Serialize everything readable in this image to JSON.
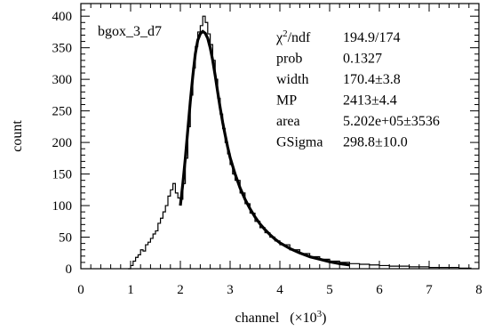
{
  "chart_data": {
    "type": "line",
    "hist_title": "bgox_3_d7",
    "xlabel": "channel",
    "xlabel_unit_prefix": "(×10",
    "xlabel_unit_exp": "3",
    "xlabel_unit_suffix": ")",
    "ylabel": "count",
    "xlim": [
      0,
      8
    ],
    "ylim": [
      0,
      420
    ],
    "x_ticks": [
      "0",
      "1",
      "2",
      "3",
      "4",
      "5",
      "6",
      "7",
      "8"
    ],
    "y_ticks": [
      "0",
      "50",
      "100",
      "150",
      "200",
      "250",
      "300",
      "350",
      "400"
    ],
    "stats": [
      {
        "label_prefix": "χ",
        "label_exp": "2",
        "label_suffix": "/ndf",
        "value": "194.9/174"
      },
      {
        "label_prefix": "prob",
        "label_exp": "",
        "label_suffix": "",
        "value": "0.1327"
      },
      {
        "label_prefix": "width",
        "label_exp": "",
        "label_suffix": "",
        "value": "170.4±3.8"
      },
      {
        "label_prefix": "MP",
        "label_exp": "",
        "label_suffix": "",
        "value": "2413±4.4"
      },
      {
        "label_prefix": "area",
        "label_exp": "",
        "label_suffix": "",
        "value": "5.202e+05±3536"
      },
      {
        "label_prefix": "GSigma",
        "label_exp": "",
        "label_suffix": "",
        "value": "298.8±10.0"
      }
    ],
    "series": [
      {
        "x": [
          0.95,
          1.0,
          1.05,
          1.1,
          1.15,
          1.2,
          1.25,
          1.3,
          1.35,
          1.4,
          1.45,
          1.5,
          1.55,
          1.6,
          1.65,
          1.7,
          1.75,
          1.8,
          1.85,
          1.9,
          1.95,
          2.0,
          2.05,
          2.1,
          2.15,
          2.2,
          2.25,
          2.3,
          2.35,
          2.4,
          2.45,
          2.5,
          2.55,
          2.6,
          2.65,
          2.7,
          2.75,
          2.8,
          2.85,
          2.9,
          2.95,
          3.0,
          3.05,
          3.1,
          3.2,
          3.3,
          3.4,
          3.5,
          3.6,
          3.7,
          3.8,
          3.9,
          4.0,
          4.2,
          4.4,
          4.6,
          4.8,
          5.0,
          5.2,
          5.4,
          5.6,
          5.8,
          6.0,
          6.2,
          6.4,
          6.6,
          6.8,
          7.0,
          7.2,
          7.4,
          7.6,
          7.8
        ],
        "y": [
          0,
          5,
          12,
          18,
          22,
          30,
          28,
          38,
          42,
          48,
          55,
          60,
          72,
          80,
          90,
          100,
          115,
          125,
          135,
          120,
          112,
          110,
          135,
          175,
          225,
          275,
          318,
          352,
          375,
          385,
          400,
          390,
          372,
          355,
          330,
          300,
          270,
          245,
          222,
          200,
          182,
          165,
          150,
          140,
          120,
          103,
          88,
          75,
          65,
          57,
          50,
          44,
          38,
          30,
          24,
          19,
          15,
          12,
          10,
          8,
          7,
          6,
          5,
          4,
          4,
          3,
          3,
          2,
          2,
          2,
          1,
          1
        ]
      },
      {
        "x": [
          2.0,
          2.05,
          2.1,
          2.15,
          2.2,
          2.25,
          2.3,
          2.35,
          2.4,
          2.45,
          2.5,
          2.55,
          2.6,
          2.65,
          2.7,
          2.75,
          2.8,
          2.85,
          2.9,
          2.95,
          3.0,
          3.1,
          3.2,
          3.3,
          3.4,
          3.5,
          3.6,
          3.7,
          3.8,
          3.9,
          4.0,
          4.2,
          4.4,
          4.6,
          4.8,
          5.0,
          5.2,
          5.4
        ],
        "y": [
          100,
          135,
          175,
          220,
          265,
          305,
          340,
          362,
          372,
          376,
          373,
          365,
          350,
          330,
          306,
          280,
          255,
          232,
          212,
          193,
          176,
          150,
          128,
          110,
          95,
          82,
          71,
          62,
          54,
          47,
          41,
          32,
          25,
          19,
          15,
          11,
          8,
          6
        ]
      }
    ]
  }
}
